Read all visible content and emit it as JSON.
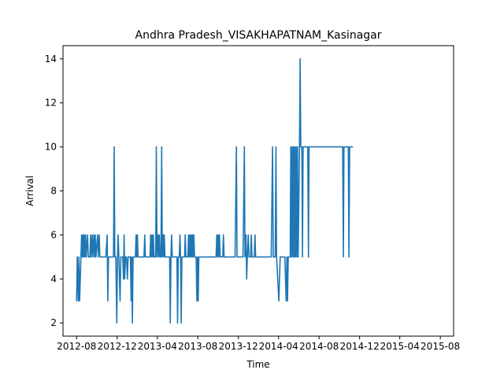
{
  "chart_data": {
    "type": "line",
    "title": "Andhra Pradesh_VISAKHAPATNAM_Kasinagar",
    "xlabel": "Time",
    "ylabel": "Arrival",
    "x_scale": "date",
    "xlim": [
      "2012-06-21",
      "2015-09-10"
    ],
    "ylim": [
      1.4,
      14.6
    ],
    "x_ticks": [
      "2012-08",
      "2012-12",
      "2013-04",
      "2013-08",
      "2013-12",
      "2014-04",
      "2014-08",
      "2014-12",
      "2015-04",
      "2015-08"
    ],
    "y_ticks": [
      2,
      4,
      6,
      8,
      10,
      12,
      14
    ],
    "grid": false,
    "legend": "none",
    "series": [
      {
        "color": "#1f77b4",
        "points": [
          [
            "2012-08-01",
            3
          ],
          [
            "2012-08-03",
            5
          ],
          [
            "2012-08-06",
            3
          ],
          [
            "2012-08-08",
            5
          ],
          [
            "2012-08-10",
            3
          ],
          [
            "2012-08-14",
            5
          ],
          [
            "2012-08-16",
            6
          ],
          [
            "2012-08-18",
            5
          ],
          [
            "2012-08-20",
            6
          ],
          [
            "2012-08-22",
            5
          ],
          [
            "2012-08-24",
            6
          ],
          [
            "2012-08-26",
            5
          ],
          [
            "2012-08-28",
            6
          ],
          [
            "2012-08-30",
            5
          ],
          [
            "2012-09-03",
            6
          ],
          [
            "2012-09-05",
            5
          ],
          [
            "2012-09-10",
            5
          ],
          [
            "2012-09-12",
            6
          ],
          [
            "2012-09-14",
            5
          ],
          [
            "2012-09-17",
            6
          ],
          [
            "2012-09-19",
            5
          ],
          [
            "2012-09-22",
            6
          ],
          [
            "2012-09-24",
            5
          ],
          [
            "2012-09-26",
            6
          ],
          [
            "2012-09-28",
            5
          ],
          [
            "2012-10-03",
            6
          ],
          [
            "2012-10-05",
            5
          ],
          [
            "2012-10-08",
            6
          ],
          [
            "2012-10-10",
            5
          ],
          [
            "2012-10-28",
            5
          ],
          [
            "2012-11-01",
            6
          ],
          [
            "2012-11-03",
            3
          ],
          [
            "2012-11-05",
            5
          ],
          [
            "2012-11-20",
            5
          ],
          [
            "2012-11-22",
            10
          ],
          [
            "2012-11-24",
            5
          ],
          [
            "2012-11-27",
            5
          ],
          [
            "2012-11-30",
            2
          ],
          [
            "2012-12-02",
            5
          ],
          [
            "2012-12-04",
            6
          ],
          [
            "2012-12-06",
            5
          ],
          [
            "2012-12-10",
            3
          ],
          [
            "2012-12-12",
            5
          ],
          [
            "2012-12-18",
            5
          ],
          [
            "2012-12-20",
            4
          ],
          [
            "2012-12-22",
            6
          ],
          [
            "2012-12-24",
            4
          ],
          [
            "2012-12-26",
            5
          ],
          [
            "2012-12-29",
            5
          ],
          [
            "2013-01-01",
            4
          ],
          [
            "2013-01-03",
            5
          ],
          [
            "2013-01-10",
            5
          ],
          [
            "2013-01-12",
            3
          ],
          [
            "2013-01-14",
            5
          ],
          [
            "2013-01-16",
            2
          ],
          [
            "2013-01-18",
            5
          ],
          [
            "2013-01-25",
            5
          ],
          [
            "2013-01-27",
            6
          ],
          [
            "2013-01-29",
            5
          ],
          [
            "2013-01-31",
            6
          ],
          [
            "2013-02-02",
            5
          ],
          [
            "2013-02-20",
            5
          ],
          [
            "2013-02-22",
            6
          ],
          [
            "2013-02-24",
            5
          ],
          [
            "2013-03-10",
            5
          ],
          [
            "2013-03-12",
            6
          ],
          [
            "2013-03-14",
            5
          ],
          [
            "2013-03-16",
            6
          ],
          [
            "2013-03-18",
            5
          ],
          [
            "2013-03-20",
            6
          ],
          [
            "2013-03-22",
            5
          ],
          [
            "2013-03-27",
            5
          ],
          [
            "2013-03-29",
            10
          ],
          [
            "2013-03-31",
            5
          ],
          [
            "2013-04-03",
            6
          ],
          [
            "2013-04-05",
            5
          ],
          [
            "2013-04-07",
            6
          ],
          [
            "2013-04-09",
            5
          ],
          [
            "2013-04-12",
            5
          ],
          [
            "2013-04-14",
            10
          ],
          [
            "2013-04-16",
            5
          ],
          [
            "2013-04-18",
            6
          ],
          [
            "2013-04-20",
            5
          ],
          [
            "2013-04-22",
            6
          ],
          [
            "2013-04-24",
            5
          ],
          [
            "2013-05-08",
            5
          ],
          [
            "2013-05-10",
            2
          ],
          [
            "2013-05-12",
            5
          ],
          [
            "2013-05-14",
            6
          ],
          [
            "2013-05-16",
            5
          ],
          [
            "2013-05-30",
            5
          ],
          [
            "2013-06-01",
            2
          ],
          [
            "2013-06-03",
            5
          ],
          [
            "2013-06-06",
            5
          ],
          [
            "2013-06-08",
            6
          ],
          [
            "2013-06-10",
            5
          ],
          [
            "2013-06-12",
            2
          ],
          [
            "2013-06-14",
            5
          ],
          [
            "2013-06-22",
            5
          ],
          [
            "2013-06-24",
            6
          ],
          [
            "2013-06-26",
            5
          ],
          [
            "2013-07-02",
            5
          ],
          [
            "2013-07-04",
            6
          ],
          [
            "2013-07-06",
            5
          ],
          [
            "2013-07-08",
            6
          ],
          [
            "2013-07-10",
            5
          ],
          [
            "2013-07-12",
            6
          ],
          [
            "2013-07-14",
            5
          ],
          [
            "2013-07-16",
            6
          ],
          [
            "2013-07-18",
            5
          ],
          [
            "2013-07-20",
            6
          ],
          [
            "2013-07-22",
            5
          ],
          [
            "2013-07-27",
            5
          ],
          [
            "2013-07-29",
            3
          ],
          [
            "2013-07-31",
            5
          ],
          [
            "2013-08-02",
            3
          ],
          [
            "2013-08-04",
            5
          ],
          [
            "2013-09-25",
            5
          ],
          [
            "2013-09-27",
            6
          ],
          [
            "2013-09-29",
            5
          ],
          [
            "2013-10-01",
            6
          ],
          [
            "2013-10-03",
            5
          ],
          [
            "2013-10-05",
            6
          ],
          [
            "2013-10-07",
            5
          ],
          [
            "2013-10-15",
            5
          ],
          [
            "2013-10-17",
            6
          ],
          [
            "2013-10-19",
            5
          ],
          [
            "2013-11-21",
            5
          ],
          [
            "2013-11-25",
            10
          ],
          [
            "2013-11-27",
            5
          ],
          [
            "2013-12-15",
            5
          ],
          [
            "2013-12-19",
            10
          ],
          [
            "2013-12-21",
            5
          ],
          [
            "2013-12-24",
            6
          ],
          [
            "2013-12-26",
            4
          ],
          [
            "2013-12-28",
            5
          ],
          [
            "2013-12-31",
            6
          ],
          [
            "2014-01-02",
            5
          ],
          [
            "2014-01-07",
            5
          ],
          [
            "2014-01-09",
            6
          ],
          [
            "2014-01-11",
            5
          ],
          [
            "2014-01-18",
            5
          ],
          [
            "2014-01-20",
            6
          ],
          [
            "2014-01-22",
            5
          ],
          [
            "2014-03-10",
            5
          ],
          [
            "2014-03-14",
            10
          ],
          [
            "2014-03-16",
            5
          ],
          [
            "2014-03-22",
            5
          ],
          [
            "2014-03-24",
            10
          ],
          [
            "2014-03-26",
            5
          ],
          [
            "2014-04-02",
            3
          ],
          [
            "2014-04-06",
            5
          ],
          [
            "2014-04-20",
            5
          ],
          [
            "2014-04-24",
            3
          ],
          [
            "2014-04-26",
            5
          ],
          [
            "2014-04-28",
            3
          ],
          [
            "2014-04-30",
            5
          ],
          [
            "2014-05-06",
            5
          ],
          [
            "2014-05-08",
            10
          ],
          [
            "2014-05-10",
            5
          ],
          [
            "2014-05-12",
            10
          ],
          [
            "2014-05-14",
            5
          ],
          [
            "2014-05-16",
            10
          ],
          [
            "2014-05-18",
            5
          ],
          [
            "2014-05-20",
            10
          ],
          [
            "2014-05-22",
            5
          ],
          [
            "2014-05-24",
            10
          ],
          [
            "2014-05-26",
            5
          ],
          [
            "2014-05-28",
            10
          ],
          [
            "2014-05-30",
            5
          ],
          [
            "2014-06-03",
            10
          ],
          [
            "2014-06-05",
            14
          ],
          [
            "2014-06-07",
            10
          ],
          [
            "2014-06-10",
            10
          ],
          [
            "2014-06-12",
            5
          ],
          [
            "2014-06-14",
            10
          ],
          [
            "2014-06-28",
            10
          ],
          [
            "2014-06-30",
            5
          ],
          [
            "2014-07-02",
            10
          ],
          [
            "2014-08-08",
            10
          ],
          [
            "2014-08-10",
            10
          ],
          [
            "2014-10-11",
            10
          ],
          [
            "2014-10-13",
            5
          ],
          [
            "2014-10-15",
            10
          ],
          [
            "2014-10-28",
            10
          ],
          [
            "2014-10-30",
            5
          ],
          [
            "2014-11-01",
            10
          ],
          [
            "2014-11-08",
            10
          ],
          [
            "2014-11-10",
            10
          ]
        ]
      }
    ]
  }
}
